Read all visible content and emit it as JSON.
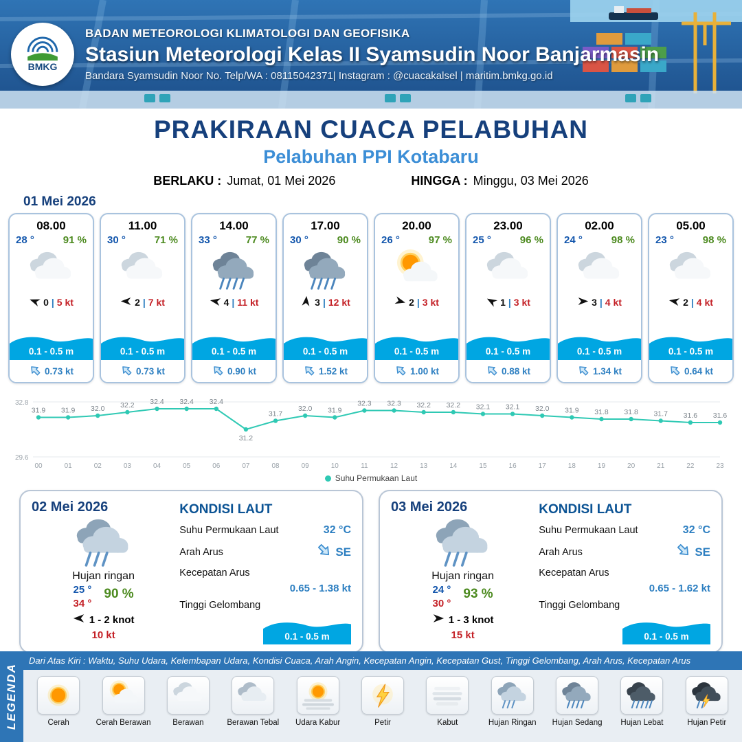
{
  "header": {
    "logo_label": "BMKG",
    "org": "BADAN METEOROLOGI KLIMATOLOGI DAN GEOFISIKA",
    "station": "Stasiun Meteorologi Kelas II Syamsudin Noor Banjarmasin",
    "contact": "Bandara Syamsudin Noor No. Telp/WA : 08115042371| Instagram : @cuacakalsel | maritim.bmkg.go.id"
  },
  "title": {
    "main": "PRAKIRAAN CUACA PELABUHAN",
    "sub": "Pelabuhan PPI Kotabaru",
    "berlaku_label": "BERLAKU :",
    "berlaku_value": "Jumat, 01 Mei 2026",
    "hingga_label": "HINGGA :",
    "hingga_value": "Minggu, 03 Mei 2026"
  },
  "day1": {
    "date": "01 Mei 2026",
    "cards": [
      {
        "time": "08.00",
        "temp": "28 °",
        "humidity": "91 %",
        "icon": "berawan",
        "wind_dir_deg": 200,
        "wind_speed": "0",
        "gust": "5 kt",
        "wave": "0.1 - 0.5 m",
        "current": "0.73 kt",
        "current_dir_deg": -135
      },
      {
        "time": "11.00",
        "temp": "30 °",
        "humidity": "71 %",
        "icon": "berawan",
        "wind_dir_deg": 180,
        "wind_speed": "2",
        "gust": "7 kt",
        "wave": "0.1 - 0.5 m",
        "current": "0.73 kt",
        "current_dir_deg": -135
      },
      {
        "time": "14.00",
        "temp": "33 °",
        "humidity": "77 %",
        "icon": "hujan-sedang",
        "wind_dir_deg": 190,
        "wind_speed": "4",
        "gust": "11 kt",
        "wave": "0.1 - 0.5 m",
        "current": "0.90 kt",
        "current_dir_deg": -135
      },
      {
        "time": "17.00",
        "temp": "30 °",
        "humidity": "90 %",
        "icon": "hujan-sedang",
        "wind_dir_deg": 275,
        "wind_speed": "3",
        "gust": "12 kt",
        "wave": "0.1 - 0.5 m",
        "current": "1.52 kt",
        "current_dir_deg": -135
      },
      {
        "time": "20.00",
        "temp": "26 °",
        "humidity": "97 %",
        "icon": "cerah-berawan",
        "wind_dir_deg": 15,
        "wind_speed": "2",
        "gust": "3 kt",
        "wave": "0.1 - 0.5 m",
        "current": "1.00 kt",
        "current_dir_deg": -135
      },
      {
        "time": "23.00",
        "temp": "25 °",
        "humidity": "96 %",
        "icon": "berawan",
        "wind_dir_deg": 210,
        "wind_speed": "1",
        "gust": "3 kt",
        "wave": "0.1 - 0.5 m",
        "current": "0.88 kt",
        "current_dir_deg": -135
      },
      {
        "time": "02.00",
        "temp": "24 °",
        "humidity": "98 %",
        "icon": "berawan",
        "wind_dir_deg": 0,
        "wind_speed": "3",
        "gust": "4 kt",
        "wave": "0.1 - 0.5 m",
        "current": "1.34 kt",
        "current_dir_deg": -135
      },
      {
        "time": "05.00",
        "temp": "23 °",
        "humidity": "98 %",
        "icon": "berawan",
        "wind_dir_deg": 190,
        "wind_speed": "2",
        "gust": "4 kt",
        "wave": "0.1 - 0.5 m",
        "current": "0.64 kt",
        "current_dir_deg": -135
      }
    ]
  },
  "chart_data": {
    "type": "line",
    "legend": "Suhu Permukaan Laut",
    "x": [
      "00",
      "01",
      "02",
      "03",
      "04",
      "05",
      "06",
      "07",
      "08",
      "09",
      "10",
      "11",
      "12",
      "13",
      "14",
      "15",
      "16",
      "17",
      "18",
      "19",
      "20",
      "21",
      "22",
      "23"
    ],
    "values": [
      31.9,
      31.9,
      32.0,
      32.2,
      32.4,
      32.4,
      32.4,
      31.2,
      31.7,
      32.0,
      31.9,
      32.3,
      32.3,
      32.2,
      32.2,
      32.1,
      32.1,
      32.0,
      31.9,
      31.8,
      31.8,
      31.7,
      31.6,
      31.6
    ],
    "ylim": [
      29.6,
      32.8
    ],
    "ytick_labels": [
      "32.8",
      "29.6"
    ],
    "line_color": "#2fc9b4",
    "grid": true,
    "legend_position": "bottom"
  },
  "days": [
    {
      "date": "02 Mei 2026",
      "icon": "hujan-ringan",
      "condition": "Hujan ringan",
      "temp_min": "25 °",
      "temp_max": "34 °",
      "humidity": "90 %",
      "wind_dir_deg": 180,
      "wind": "1  - 2 knot",
      "gust": "10 kt",
      "kondisi_laut": {
        "title": "KONDISI LAUT",
        "sst_label": "Suhu Permukaan Laut",
        "sst": "32 °C",
        "arah_label": "Arah Arus",
        "arah": "SE",
        "arah_deg": 45,
        "kecepatan_label": "Kecepatan Arus",
        "kecepatan": "0.65 - 1.38 kt",
        "gelombang_label": "Tinggi Gelombang",
        "gelombang": "0.1 - 0.5 m"
      }
    },
    {
      "date": "03 Mei 2026",
      "icon": "hujan-ringan",
      "condition": "Hujan ringan",
      "temp_min": "24 °",
      "temp_max": "30 °",
      "humidity": "93 %",
      "wind_dir_deg": 0,
      "wind": "1  - 3 knot",
      "gust": "15 kt",
      "kondisi_laut": {
        "title": "KONDISI LAUT",
        "sst_label": "Suhu Permukaan Laut",
        "sst": "32 °C",
        "arah_label": "Arah Arus",
        "arah": "SE",
        "arah_deg": 45,
        "kecepatan_label": "Kecepatan Arus",
        "kecepatan": "0.65 - 1.62 kt",
        "gelombang_label": "Tinggi Gelombang",
        "gelombang": "0.1 - 0.5 m"
      }
    }
  ],
  "legend": {
    "title": "LEGENDA",
    "description": "Dari Atas Kiri : Waktu, Suhu Udara, Kelembapan Udara, Kondisi Cuaca, Arah Angin, Kecepatan Angin, Kecepatan Gust, Tinggi Gelombang, Arah Arus, Kecepatan Arus",
    "items": [
      {
        "label": "Cerah",
        "icon": "cerah"
      },
      {
        "label": "Cerah Berawan",
        "icon": "cerah-berawan"
      },
      {
        "label": "Berawan",
        "icon": "berawan"
      },
      {
        "label": "Berawan Tebal",
        "icon": "berawan-tebal"
      },
      {
        "label": "Udara Kabur",
        "icon": "udara-kabur"
      },
      {
        "label": "Petir",
        "icon": "petir"
      },
      {
        "label": "Kabut",
        "icon": "kabut"
      },
      {
        "label": "Hujan Ringan",
        "icon": "hujan-ringan"
      },
      {
        "label": "Hujan Sedang",
        "icon": "hujan-sedang"
      },
      {
        "label": "Hujan Lebat",
        "icon": "hujan-lebat"
      },
      {
        "label": "Hujan Petir",
        "icon": "hujan-petir"
      }
    ]
  },
  "colors": {
    "navy": "#16407c",
    "accent_blue": "#3c8ed6",
    "temp_blue": "#1457ad",
    "humidity_green": "#4c8a1f",
    "gust_red": "#c42127",
    "wave_blue": "#00a6e2",
    "current_blue": "#2d7fc1",
    "sst_line": "#2fc9b4",
    "legend_bar": "#2e75b6"
  }
}
